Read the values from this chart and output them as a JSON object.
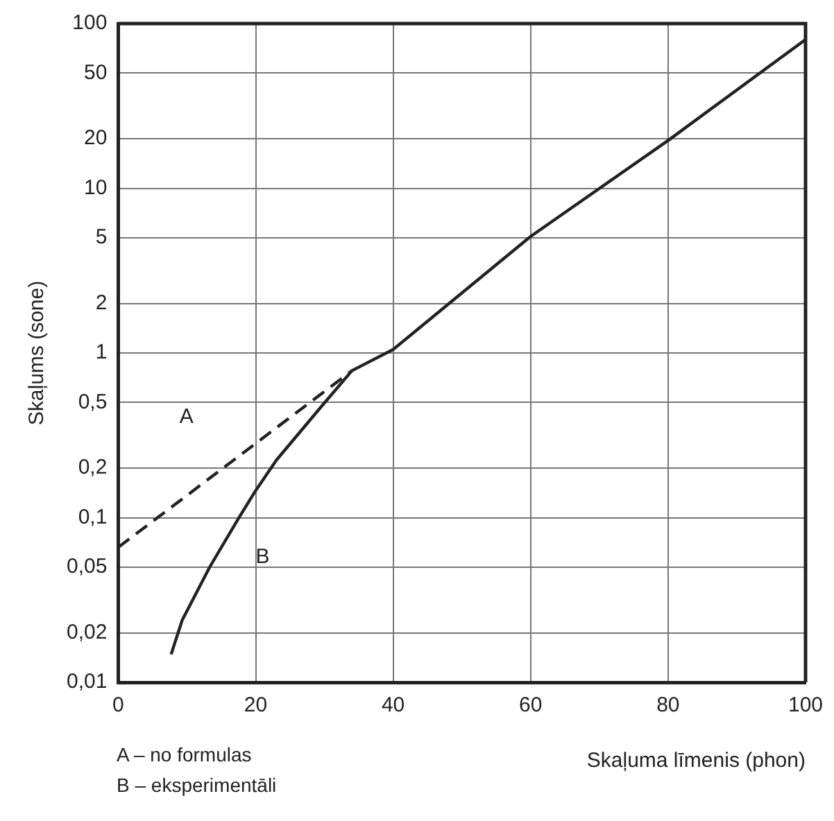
{
  "chart_data": {
    "type": "line",
    "xlabel": "Skaļuma līmenis (phon)",
    "ylabel": "Skaļums (sone)",
    "xlim": [
      0,
      100
    ],
    "xticks": [
      0,
      20,
      40,
      60,
      80,
      100
    ],
    "ylim": [
      0.01,
      100
    ],
    "log": "y",
    "yticks": [
      {
        "value": 0.01,
        "label": "0,01"
      },
      {
        "value": 0.02,
        "label": "0,02"
      },
      {
        "value": 0.05,
        "label": "0,05"
      },
      {
        "value": 0.1,
        "label": "0,1"
      },
      {
        "value": 0.2,
        "label": "0,2"
      },
      {
        "value": 0.5,
        "label": "0,5"
      },
      1,
      2,
      5,
      10,
      20,
      50,
      100
    ],
    "grid": true,
    "legend": false,
    "marker": "none",
    "series": [
      {
        "name": "A",
        "color": "#222222",
        "line_style": "dashed",
        "x": [
          0,
          34
        ],
        "values": [
          0.066,
          0.78
        ]
      },
      {
        "name": "B",
        "color": "#222222",
        "line_style": "solid",
        "x": [
          7.7,
          9.3,
          13.3,
          17.5,
          20,
          23,
          29.6,
          34,
          40,
          60,
          80,
          100
        ],
        "values": [
          0.0148,
          0.0238,
          0.05,
          0.099,
          0.146,
          0.223,
          0.475,
          0.78,
          1.05,
          5.1,
          19.5,
          80
        ]
      }
    ],
    "annotations": [
      "A – no formulas",
      "B – eksperimentāli"
    ]
  }
}
